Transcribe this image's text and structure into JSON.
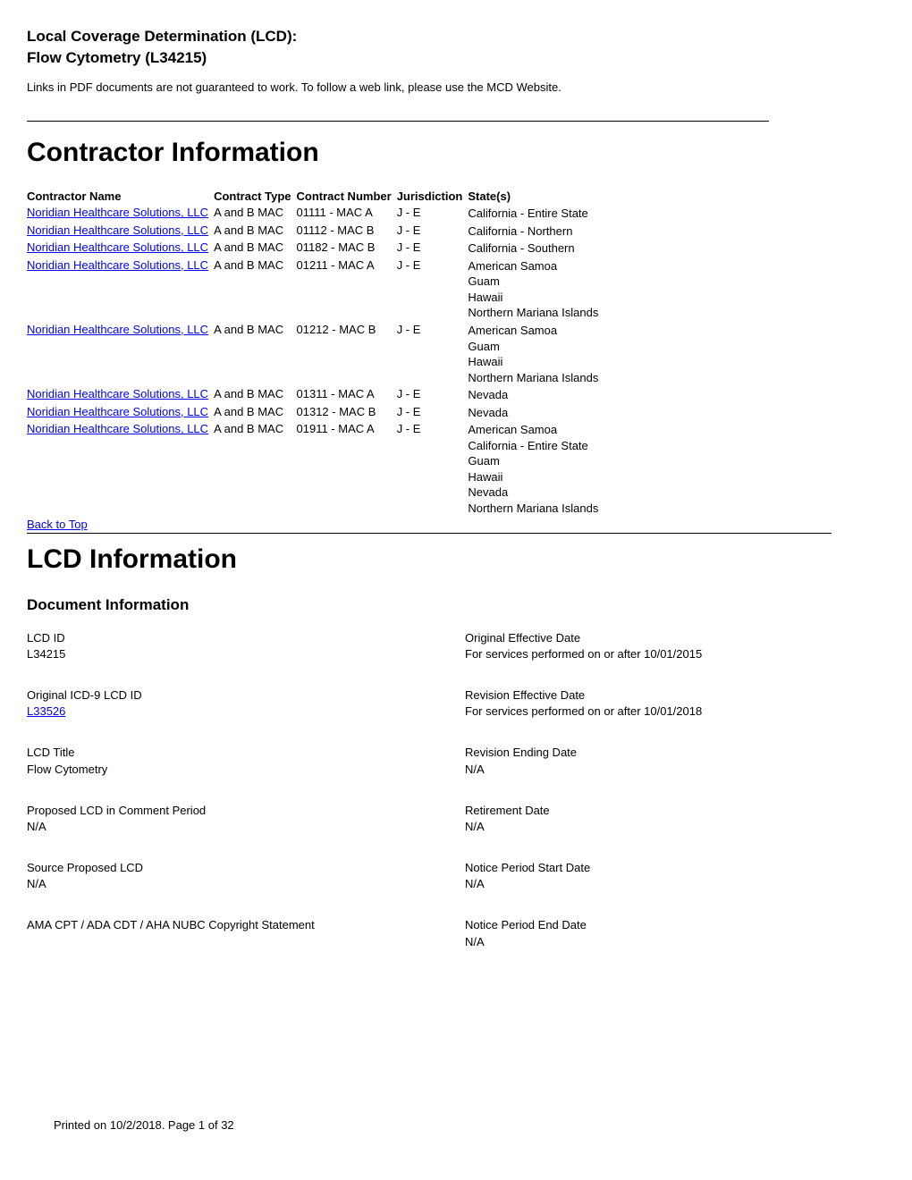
{
  "header": {
    "title_line1": "Local Coverage Determination (LCD):",
    "title_line2": "Flow Cytometry (L34215)",
    "intro_text": "Links in PDF documents are not guaranteed to work. To follow a web link, please use the MCD Website."
  },
  "contractor_section": {
    "heading": "Contractor Information",
    "columns": {
      "name": "Contractor Name",
      "type": "Contract Type",
      "number": "Contract Number",
      "jurisdiction": "Jurisdiction",
      "states": "State(s)"
    },
    "rows": [
      {
        "name": "Noridian Healthcare Solutions, LLC",
        "type": "A and B MAC",
        "number": "01111 - MAC A",
        "jurisdiction": "J - E",
        "states": "California - Entire State"
      },
      {
        "name": "Noridian Healthcare Solutions, LLC",
        "type": "A and B MAC",
        "number": "01112 - MAC B",
        "jurisdiction": "J - E",
        "states": "California - Northern"
      },
      {
        "name": "Noridian Healthcare Solutions, LLC",
        "type": "A and B MAC",
        "number": "01182 - MAC B",
        "jurisdiction": "J - E",
        "states": "California - Southern"
      },
      {
        "name": "Noridian Healthcare Solutions, LLC",
        "type": "A and B MAC",
        "number": "01211 - MAC A",
        "jurisdiction": "J - E",
        "states": "American Samoa\nGuam\nHawaii\nNorthern Mariana Islands"
      },
      {
        "name": "Noridian Healthcare Solutions, LLC",
        "type": "A and B MAC",
        "number": "01212 - MAC B",
        "jurisdiction": "J - E",
        "states": "American Samoa\nGuam\nHawaii\nNorthern Mariana Islands"
      },
      {
        "name": "Noridian Healthcare Solutions, LLC",
        "type": "A and B MAC",
        "number": "01311 - MAC A",
        "jurisdiction": "J - E",
        "states": "Nevada"
      },
      {
        "name": "Noridian Healthcare Solutions, LLC",
        "type": "A and B MAC",
        "number": "01312 - MAC B",
        "jurisdiction": "J - E",
        "states": "Nevada"
      },
      {
        "name": "Noridian Healthcare Solutions, LLC",
        "type": "A and B MAC",
        "number": "01911 - MAC A",
        "jurisdiction": "J - E",
        "states": "American Samoa\nCalifornia - Entire State\nGuam\nHawaii\nNevada\nNorthern Mariana Islands"
      }
    ],
    "back_to_top": "Back to Top"
  },
  "lcd_section": {
    "heading": "LCD Information",
    "subheading": "Document Information",
    "left_col": [
      {
        "label": "LCD ID",
        "value": "L34215",
        "is_link": false
      },
      {
        "label": "Original ICD-9 LCD ID",
        "value": "L33526",
        "is_link": true
      },
      {
        "label": "LCD Title",
        "value": "Flow Cytometry",
        "is_link": false
      },
      {
        "label": "Proposed LCD in Comment Period",
        "value": "N/A",
        "is_link": false
      },
      {
        "label": "Source Proposed LCD",
        "value": "N/A",
        "is_link": false
      },
      {
        "label": "AMA CPT / ADA CDT / AHA NUBC Copyright Statement",
        "value": "",
        "is_link": false
      }
    ],
    "right_col": [
      {
        "label": "Original Effective Date",
        "value": "For services performed on or after 10/01/2015"
      },
      {
        "label": "Revision Effective Date",
        "value": "For services performed on or after 10/01/2018"
      },
      {
        "label": "Revision Ending Date",
        "value": "N/A"
      },
      {
        "label": "Retirement Date",
        "value": "N/A"
      },
      {
        "label": "Notice Period Start Date",
        "value": "N/A"
      },
      {
        "label": "Notice Period End Date",
        "value": "N/A"
      }
    ]
  },
  "footer": {
    "text": "Printed on 10/2/2018. Page 1 of 32"
  },
  "colors": {
    "link_color": "#0000ee",
    "text_color": "#000000",
    "background_color": "#ffffff",
    "divider_color": "#000000"
  }
}
